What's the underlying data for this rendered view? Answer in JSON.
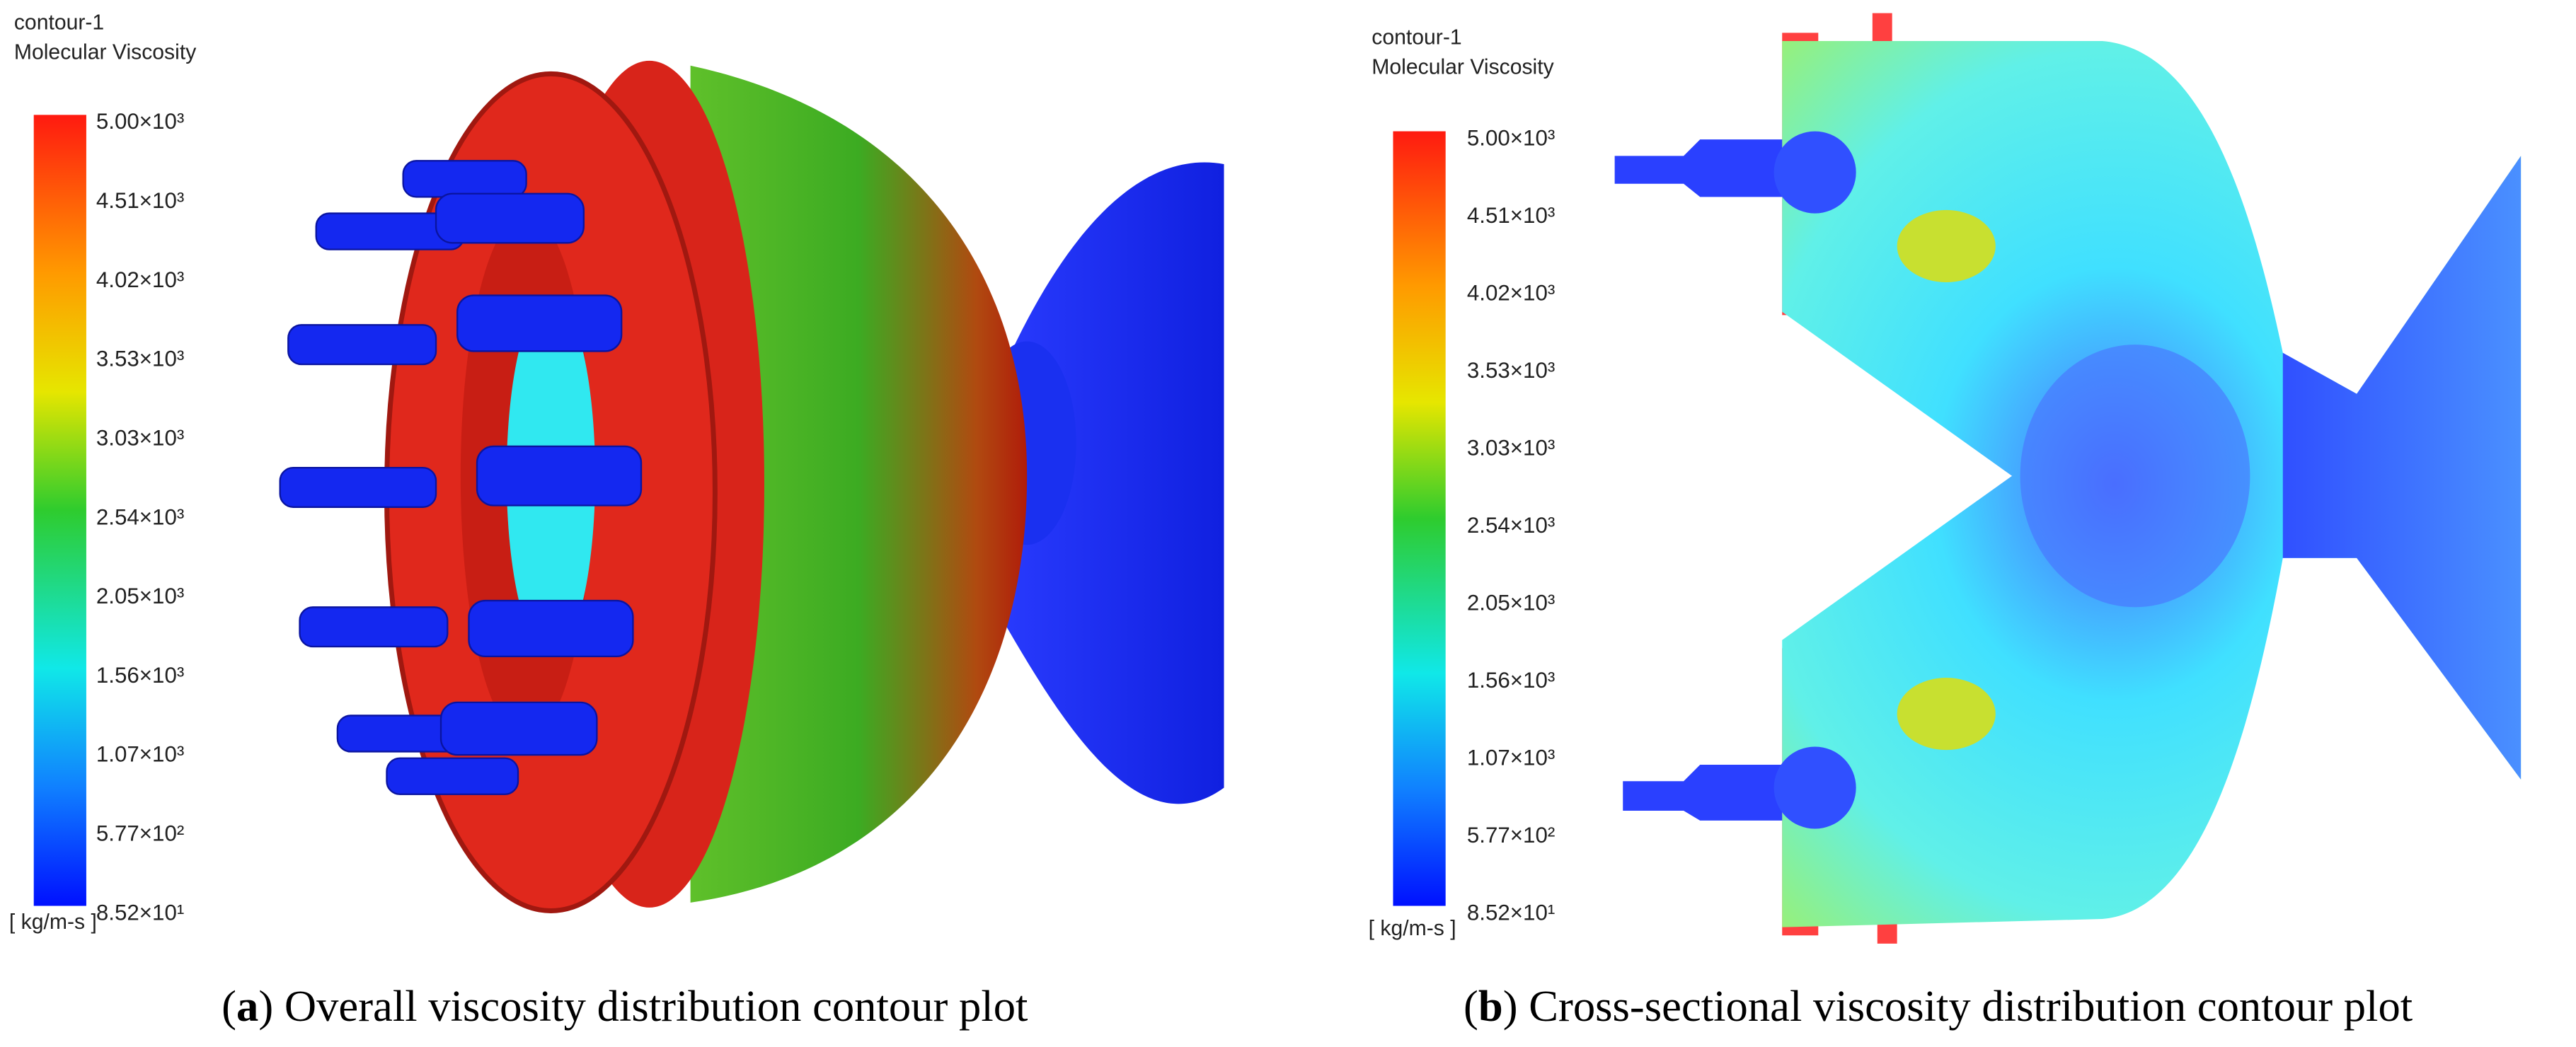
{
  "panels": [
    {
      "title": "contour-1",
      "variable": "Molecular Viscosity",
      "unit": "[ kg/m-s ]",
      "colorbar_labels": [
        "5.00×10³",
        "4.51×10³",
        "4.02×10³",
        "3.53×10³",
        "3.03×10³",
        "2.54×10³",
        "2.05×10³",
        "1.56×10³",
        "1.07×10³",
        "5.77×10²",
        "8.52×10¹"
      ],
      "caption": [
        "(",
        "a",
        ") Overall viscosity distribution contour plot"
      ]
    },
    {
      "title": "contour-1",
      "variable": "Molecular Viscosity",
      "unit": "[ kg/m-s ]",
      "colorbar_labels": [
        "5.00×10³",
        "4.51×10³",
        "4.02×10³",
        "3.53×10³",
        "3.03×10³",
        "2.54×10³",
        "2.05×10³",
        "1.56×10³",
        "1.07×10³",
        "5.77×10²",
        "8.52×10¹"
      ],
      "caption": [
        "(",
        "b",
        ") Cross-sectional viscosity distribution contour plot"
      ]
    }
  ]
}
